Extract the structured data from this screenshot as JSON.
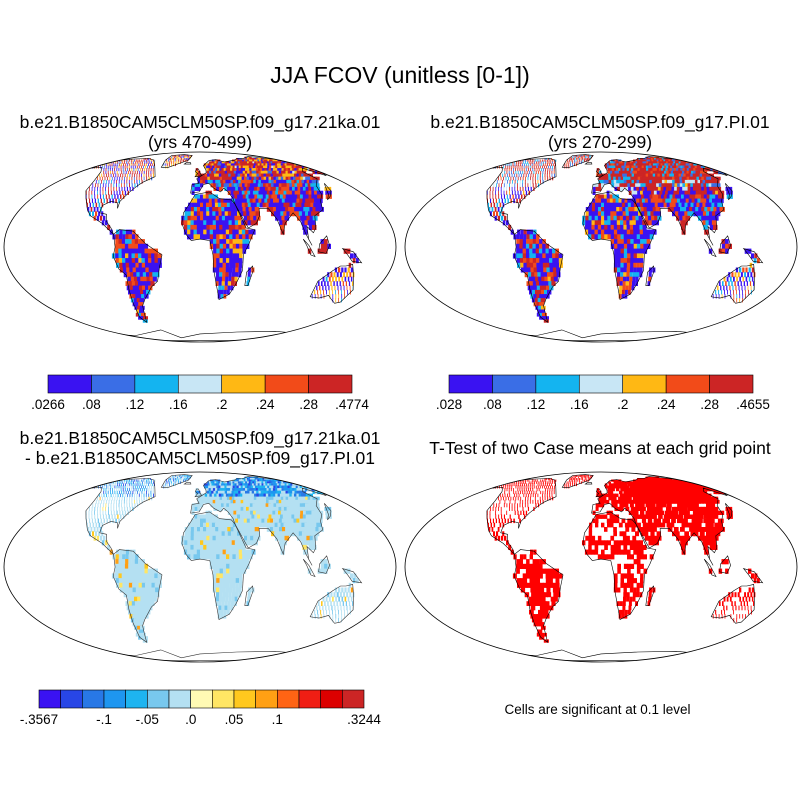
{
  "main_title": "JJA FCOV (unitless [0-1])",
  "panels": [
    {
      "id": "case-a",
      "title_lines": [
        "b.e21.B1850CAM5CLM50SP.f09_g17.21ka.01",
        "(yrs 470-499)"
      ],
      "colorbar": {
        "colors": [
          "#3a12f2",
          "#3a6ee6",
          "#14b4f0",
          "#c8e6f5",
          "#ffb814",
          "#f24b19",
          "#cc2525"
        ],
        "labels": [
          ".0266",
          ".08",
          ".12",
          ".16",
          ".2",
          ".24",
          ".28",
          ".4774"
        ]
      }
    },
    {
      "id": "case-b",
      "title_lines": [
        "b.e21.B1850CAM5CLM50SP.f09_g17.PI.01",
        "(yrs 270-299)"
      ],
      "colorbar": {
        "colors": [
          "#3a12f2",
          "#3a6ee6",
          "#14b4f0",
          "#c8e6f5",
          "#ffb814",
          "#f24b19",
          "#cc2525"
        ],
        "labels": [
          ".028",
          ".08",
          ".12",
          ".16",
          ".2",
          ".24",
          ".28",
          ".4655"
        ]
      }
    },
    {
      "id": "difference",
      "title_lines": [
        "b.e21.B1850CAM5CLM50SP.f09_g17.21ka.01",
        "- b.e21.B1850CAM5CLM50SP.f09_g17.PI.01"
      ],
      "colorbar": {
        "colors": [
          "#3a12f2",
          "#2846e6",
          "#2878e6",
          "#1e96f0",
          "#1eb4f0",
          "#78c8ee",
          "#b4e0f2",
          "#fffab4",
          "#ffe664",
          "#ffc81e",
          "#ffa014",
          "#ff6414",
          "#f01e14",
          "#dc0000",
          "#cc2525"
        ],
        "labels": [
          "-.3567",
          "-.1",
          "-.05",
          ".0",
          ".05",
          ".1",
          ".3244"
        ]
      }
    },
    {
      "id": "ttest",
      "title_lines": [
        "T-Test of two Case means at each grid point"
      ],
      "note": "Cells are significant at 0.1 level"
    }
  ]
}
